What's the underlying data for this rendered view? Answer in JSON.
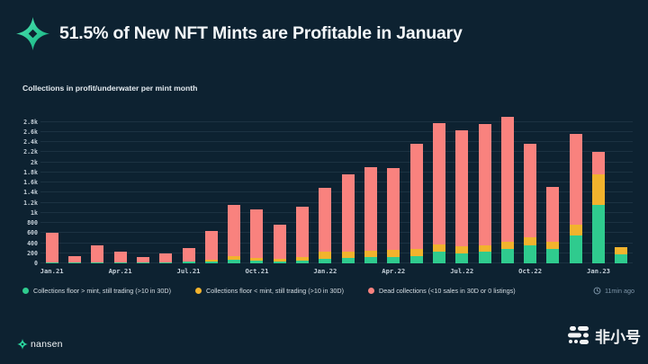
{
  "header": {
    "title": "51.5% of New NFT Mints are Profitable in January"
  },
  "subtitle": "Collections in profit/underwater per mint month",
  "chart_data": {
    "type": "bar",
    "stacked": true,
    "title": "Collections in profit/underwater per mint month",
    "xlabel": "",
    "ylabel": "",
    "ylim": [
      0,
      2900
    ],
    "grid": true,
    "legend_position": "bottom",
    "categories": [
      "Jan.21",
      "Feb.21",
      "Mar.21",
      "Apr.21",
      "May.21",
      "Jun.21",
      "Jul.21",
      "Aug.21",
      "Sep.21",
      "Oct.21",
      "Nov.21",
      "Dec.21",
      "Jan.22",
      "Feb.22",
      "Mar.22",
      "Apr.22",
      "May.22",
      "Jun.22",
      "Jul.22",
      "Aug.22",
      "Sep.22",
      "Oct.22",
      "Nov.22",
      "Dec.22",
      "Jan.23",
      "Feb.23"
    ],
    "series": [
      {
        "name": "Collections floor > mint, still trading (>10 in 30D)",
        "color": "#2FCB8E",
        "values": [
          25,
          10,
          15,
          10,
          10,
          15,
          30,
          40,
          65,
          50,
          40,
          60,
          90,
          100,
          120,
          130,
          140,
          230,
          200,
          230,
          280,
          350,
          290,
          555,
          1150,
          170
        ]
      },
      {
        "name": "Collections floor < mint, still trading (>10 in 30D)",
        "color": "#F2B32D",
        "values": [
          0,
          0,
          0,
          0,
          0,
          0,
          10,
          25,
          70,
          60,
          45,
          70,
          150,
          130,
          125,
          135,
          150,
          150,
          135,
          120,
          140,
          165,
          130,
          205,
          620,
          150
        ]
      },
      {
        "name": "Dead collections (<10 sales in 30D or 0 listings)",
        "color": "#F9827E",
        "values": [
          575,
          130,
          345,
          230,
          110,
          185,
          260,
          585,
          1015,
          950,
          675,
          1000,
          1260,
          1540,
          1655,
          1615,
          2080,
          2400,
          2305,
          2410,
          2480,
          1855,
          1100,
          1810,
          440,
          0
        ]
      }
    ],
    "y_ticks": [
      {
        "value": 0,
        "label": "0"
      },
      {
        "value": 200,
        "label": "200"
      },
      {
        "value": 400,
        "label": "400"
      },
      {
        "value": 600,
        "label": "600"
      },
      {
        "value": 800,
        "label": "800"
      },
      {
        "value": 1000,
        "label": "1k"
      },
      {
        "value": 1200,
        "label": "1.2k"
      },
      {
        "value": 1400,
        "label": "1.4k"
      },
      {
        "value": 1600,
        "label": "1.6k"
      },
      {
        "value": 1800,
        "label": "1.8k"
      },
      {
        "value": 2000,
        "label": "2k"
      },
      {
        "value": 2200,
        "label": "2.2k"
      },
      {
        "value": 2400,
        "label": "2.4k"
      },
      {
        "value": 2600,
        "label": "2.6k"
      },
      {
        "value": 2800,
        "label": "2.8k"
      }
    ],
    "x_tick_labels": [
      "Jan.21",
      "Apr.21",
      "Jul.21",
      "Oct.21",
      "Jan.22",
      "Apr.22",
      "Jul.22",
      "Oct.22",
      "Jan.23"
    ],
    "x_tick_every": 3
  },
  "updated": {
    "label": "11min ago"
  },
  "footer": {
    "brand": "nansen",
    "watermark": "非小号"
  },
  "colors": {
    "background": "#0D2231",
    "accent_green": "#2FCB8E",
    "accent_yellow": "#F2B32D",
    "accent_salmon": "#F9827E",
    "logo_teal": "#35DFA6"
  }
}
